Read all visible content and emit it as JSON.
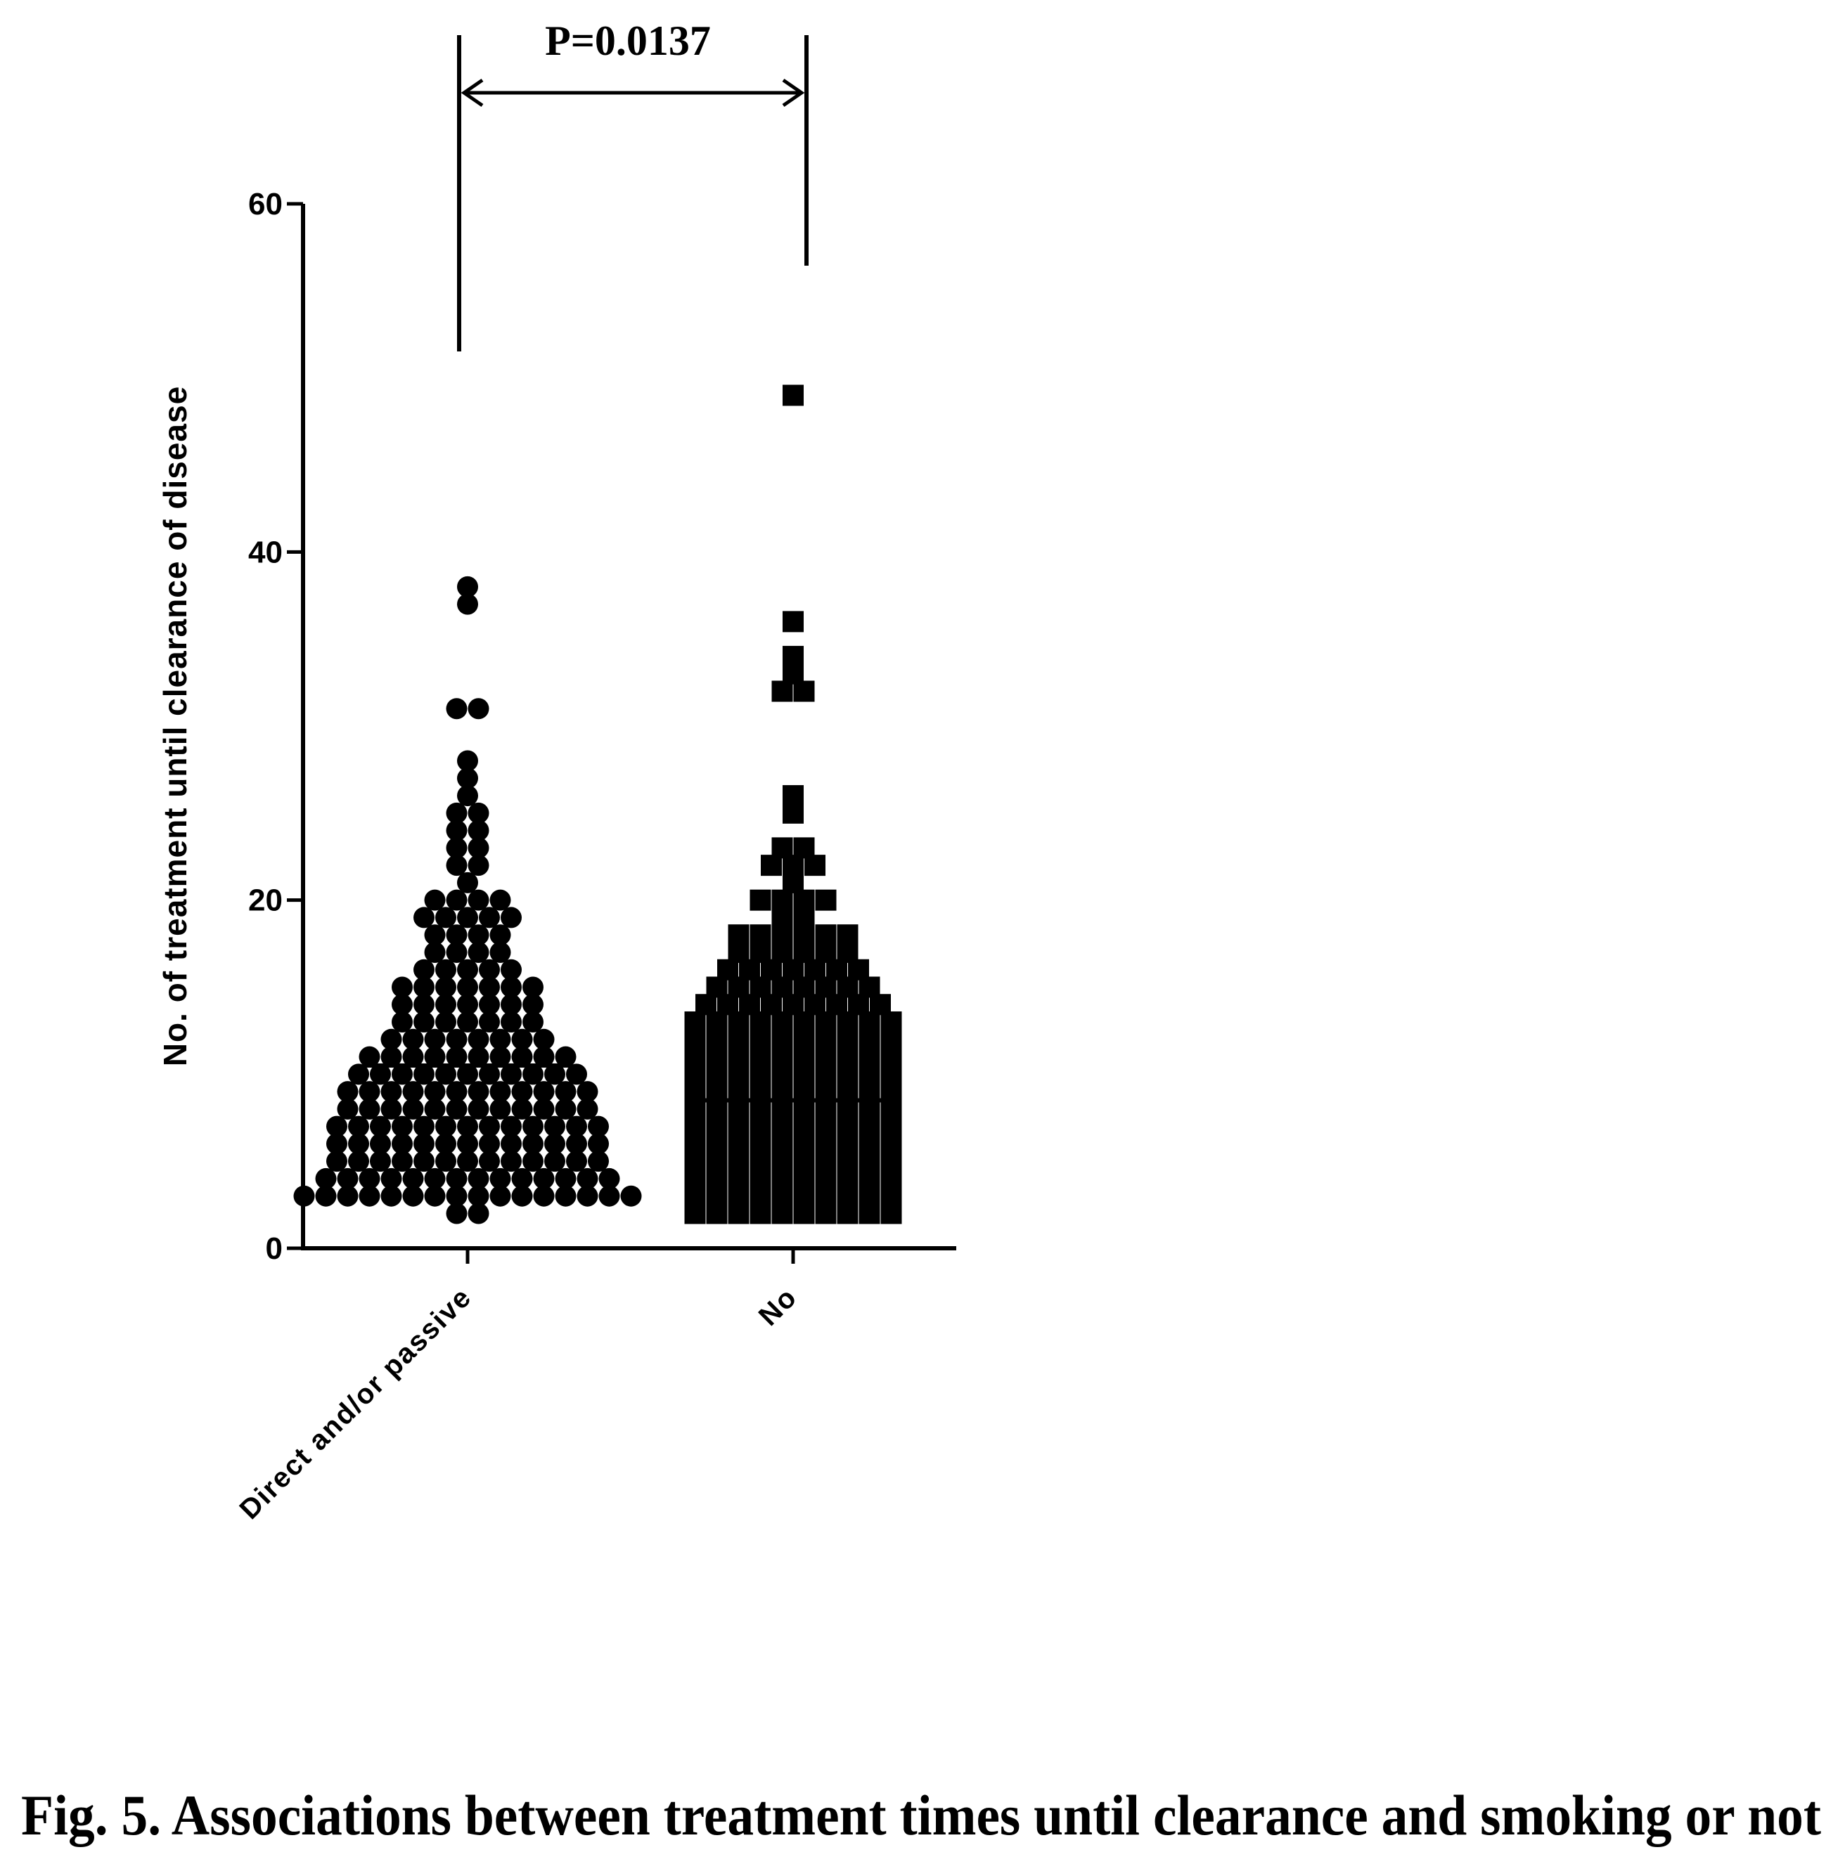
{
  "chart_data": {
    "type": "scatter",
    "title": "",
    "ylabel": "No. of treatment until clearance of disease",
    "xlabel": "",
    "ylim": [
      0,
      60
    ],
    "yticks": [
      0,
      20,
      40,
      60
    ],
    "categories": [
      "Direct and/or passive",
      "No"
    ],
    "annotation": "P=0.0137",
    "caption": "Fig. 5. Associations between treatment times until clearance and smoking or not",
    "series": [
      {
        "category": "Direct and/or passive",
        "marker": "circle",
        "mean": 10.5,
        "values": [
          38,
          37,
          31,
          31,
          28,
          27,
          26,
          25,
          25,
          24,
          24,
          23,
          23,
          22,
          22,
          21,
          20,
          20,
          20,
          20,
          19,
          19,
          19,
          19,
          19,
          18,
          18,
          18,
          18,
          17,
          17,
          17,
          17,
          16,
          16,
          16,
          16,
          16,
          15,
          15,
          15,
          15,
          15,
          15,
          15,
          14,
          14,
          14,
          14,
          14,
          14,
          14,
          13,
          13,
          13,
          13,
          13,
          13,
          13,
          12,
          12,
          12,
          12,
          12,
          12,
          12,
          12,
          11,
          11,
          11,
          11,
          11,
          11,
          11,
          11,
          11,
          11,
          10,
          10,
          10,
          10,
          10,
          10,
          10,
          10,
          10,
          10,
          10,
          9,
          9,
          9,
          9,
          9,
          9,
          9,
          9,
          9,
          9,
          9,
          9,
          8,
          8,
          8,
          8,
          8,
          8,
          8,
          8,
          8,
          8,
          8,
          8,
          7,
          7,
          7,
          7,
          7,
          7,
          7,
          7,
          7,
          7,
          7,
          7,
          7,
          6,
          6,
          6,
          6,
          6,
          6,
          6,
          6,
          6,
          6,
          6,
          6,
          6,
          5,
          5,
          5,
          5,
          5,
          5,
          5,
          5,
          5,
          5,
          5,
          5,
          5,
          4,
          4,
          4,
          4,
          4,
          4,
          4,
          4,
          4,
          4,
          4,
          4,
          4,
          4,
          3,
          3,
          3,
          3,
          3,
          3,
          3,
          3,
          3,
          3,
          3,
          3,
          3,
          3,
          3,
          3,
          2,
          2
        ]
      },
      {
        "category": "No",
        "marker": "square",
        "mean": 8.5,
        "values": [
          49,
          36,
          34,
          33,
          32,
          32,
          26,
          25,
          23,
          23,
          22,
          22,
          22,
          21,
          20,
          20,
          20,
          20,
          19,
          19,
          18,
          18,
          18,
          18,
          18,
          18,
          17,
          17,
          17,
          17,
          17,
          17,
          16,
          16,
          16,
          16,
          16,
          16,
          16,
          15,
          15,
          15,
          15,
          15,
          15,
          15,
          15,
          14,
          14,
          14,
          14,
          14,
          14,
          14,
          14,
          14,
          13,
          13,
          13,
          13,
          13,
          13,
          13,
          13,
          13,
          13,
          12,
          12,
          12,
          12,
          12,
          12,
          12,
          12,
          12,
          12,
          11,
          11,
          11,
          11,
          11,
          11,
          11,
          11,
          11,
          11,
          10,
          10,
          10,
          10,
          10,
          10,
          10,
          10,
          10,
          10,
          9,
          9,
          9,
          9,
          9,
          9,
          9,
          9,
          9,
          9,
          8,
          8,
          8,
          8,
          8,
          8,
          8,
          8,
          8,
          8,
          7,
          7,
          7,
          7,
          7,
          7,
          7,
          7,
          7,
          7,
          6,
          6,
          6,
          6,
          6,
          6,
          6,
          6,
          6,
          6,
          5,
          5,
          5,
          5,
          5,
          5,
          5,
          5,
          5,
          5,
          4,
          4,
          4,
          4,
          4,
          4,
          4,
          4,
          4,
          4,
          3,
          3,
          3,
          3,
          3,
          3,
          3,
          3,
          3,
          3,
          2,
          2,
          2,
          2,
          2,
          2,
          2,
          2,
          2,
          2
        ]
      }
    ]
  }
}
